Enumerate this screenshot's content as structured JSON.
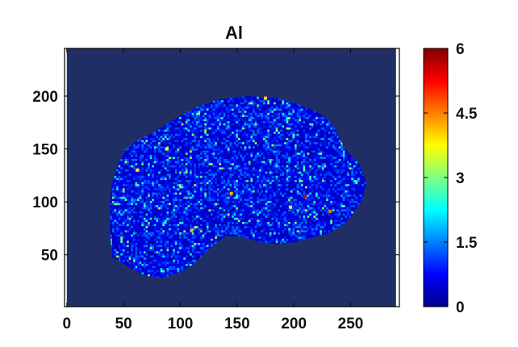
{
  "chart_data": {
    "type": "heatmap",
    "title": "Al",
    "xlabel": "",
    "ylabel": "",
    "xlim": [
      -2,
      293
    ],
    "ylim": [
      1,
      245
    ],
    "x_ticks": [
      0,
      50,
      100,
      150,
      200,
      250
    ],
    "x_tick_labels": [
      "0",
      "50",
      "100",
      "150",
      "200",
      "250"
    ],
    "y_ticks": [
      50,
      100,
      150,
      200
    ],
    "y_tick_labels": [
      "50",
      "100",
      "150",
      "200"
    ],
    "image_extent_x": [
      0,
      290
    ],
    "image_extent_y": [
      1,
      245
    ],
    "background_value": 0,
    "colormap": "jet",
    "colorbar": {
      "range": [
        0,
        6
      ],
      "ticks": [
        0,
        1.5,
        3,
        4.5,
        6
      ],
      "tick_labels": [
        "0",
        "1.5",
        "3",
        "4.5",
        "6"
      ]
    },
    "region_outline": [
      [
        40,
        48
      ],
      [
        38,
        70
      ],
      [
        38,
        100
      ],
      [
        40,
        118
      ],
      [
        45,
        135
      ],
      [
        52,
        150
      ],
      [
        62,
        158
      ],
      [
        75,
        165
      ],
      [
        95,
        178
      ],
      [
        115,
        190
      ],
      [
        135,
        197
      ],
      [
        160,
        200
      ],
      [
        185,
        198
      ],
      [
        205,
        192
      ],
      [
        220,
        185
      ],
      [
        230,
        178
      ],
      [
        237,
        168
      ],
      [
        245,
        150
      ],
      [
        258,
        135
      ],
      [
        264,
        118
      ],
      [
        260,
        102
      ],
      [
        252,
        88
      ],
      [
        243,
        78
      ],
      [
        230,
        70
      ],
      [
        215,
        66
      ],
      [
        200,
        62
      ],
      [
        185,
        60
      ],
      [
        170,
        62
      ],
      [
        155,
        67
      ],
      [
        140,
        68
      ],
      [
        130,
        60
      ],
      [
        120,
        50
      ],
      [
        110,
        40
      ],
      [
        98,
        33
      ],
      [
        85,
        28
      ],
      [
        70,
        30
      ],
      [
        55,
        38
      ],
      [
        45,
        45
      ]
    ],
    "typical_value_in_region": 0.9,
    "value_range_in_region": [
      0,
      6
    ],
    "hotspots": [
      {
        "x": 210,
        "y": 105,
        "value": 5.5
      },
      {
        "x": 232,
        "y": 91,
        "value": 4.6
      },
      {
        "x": 145,
        "y": 108,
        "value": 4.2
      },
      {
        "x": 175,
        "y": 198,
        "value": 4.0
      },
      {
        "x": 62,
        "y": 130,
        "value": 3.9
      },
      {
        "x": 110,
        "y": 73,
        "value": 4.1
      },
      {
        "x": 197,
        "y": 95,
        "value": 3.8
      },
      {
        "x": 88,
        "y": 150,
        "value": 3.6
      }
    ]
  },
  "colors": {
    "background_deep_blue": "#1f2f66",
    "axis": "#000000",
    "side_bar": "#ffffff"
  }
}
